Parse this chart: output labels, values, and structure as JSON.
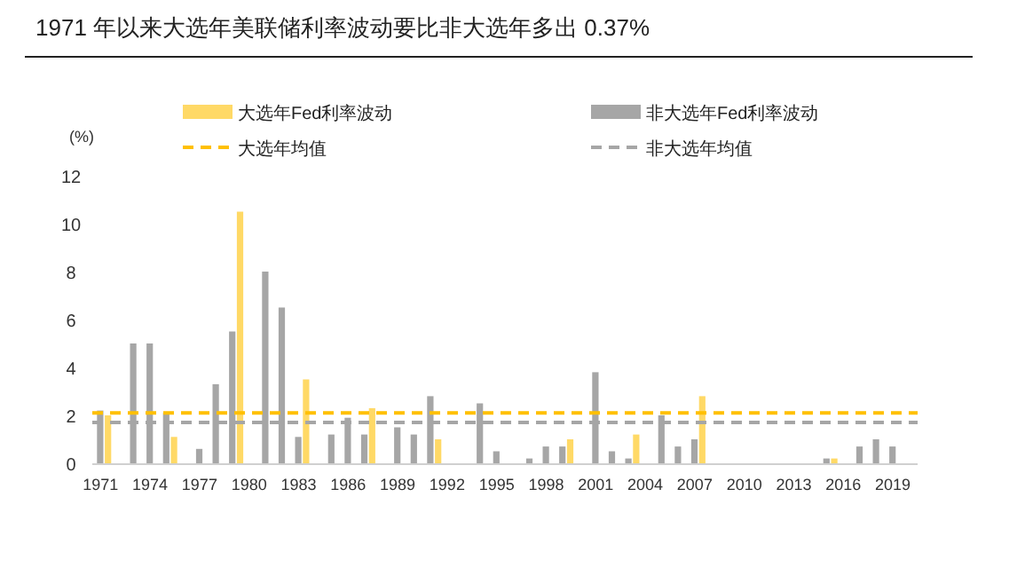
{
  "chart_data": {
    "type": "bar",
    "title": "1971 年以来大选年美联储利率波动要比非大选年多出 0.37%",
    "ylabel": "(%)",
    "categories": [
      "1971",
      null,
      null,
      "1974",
      null,
      null,
      "1977",
      null,
      null,
      "1980",
      null,
      null,
      "1983",
      null,
      null,
      "1986",
      null,
      null,
      "1989",
      null,
      null,
      "1992",
      null,
      null,
      "1995",
      null,
      null,
      "1998",
      null,
      null,
      "2001",
      null,
      null,
      "2004",
      null,
      null,
      "2007",
      null,
      null,
      "2010",
      null,
      null,
      "2013",
      null,
      null,
      "2016",
      null,
      null,
      "2019",
      null
    ],
    "series": [
      {
        "name": "大选年Fed利率波动",
        "color": "#ffd966",
        "values": [
          2.0,
          null,
          null,
          null,
          1.1,
          null,
          null,
          null,
          10.5,
          null,
          null,
          null,
          3.5,
          null,
          null,
          null,
          2.3,
          null,
          null,
          null,
          1.0,
          null,
          null,
          null,
          null,
          null,
          null,
          null,
          1.0,
          null,
          null,
          null,
          1.2,
          null,
          null,
          null,
          2.8,
          null,
          null,
          null,
          null,
          null,
          null,
          null,
          0.2,
          null,
          null,
          null,
          null,
          null
        ]
      },
      {
        "name": "非大选年Fed利率波动",
        "color": "#a6a6a6",
        "values": [
          2.2,
          null,
          5.0,
          5.0,
          2.1,
          null,
          0.6,
          3.3,
          5.5,
          null,
          8.0,
          6.5,
          1.1,
          null,
          1.2,
          1.9,
          1.2,
          null,
          1.5,
          1.2,
          2.8,
          null,
          null,
          2.5,
          0.5,
          null,
          0.2,
          0.7,
          0.7,
          null,
          3.8,
          0.5,
          0.2,
          null,
          2.0,
          0.7,
          1.0,
          null,
          null,
          null,
          null,
          null,
          null,
          null,
          0.2,
          null,
          0.7,
          1.0,
          0.7,
          null
        ]
      }
    ],
    "ylim": [
      0,
      12
    ],
    "yticks": [
      0,
      2,
      4,
      6,
      8,
      10,
      12
    ],
    "ref_lines": [
      {
        "axis": "y",
        "value": 2.1,
        "label": "大选年均值",
        "color": "#ffc000",
        "line_style": "dashed"
      },
      {
        "axis": "y",
        "value": 1.7,
        "label": "非大选年均值",
        "color": "#a6a6a6",
        "line_style": "dashed"
      }
    ],
    "legend": "top",
    "grid": false
  }
}
